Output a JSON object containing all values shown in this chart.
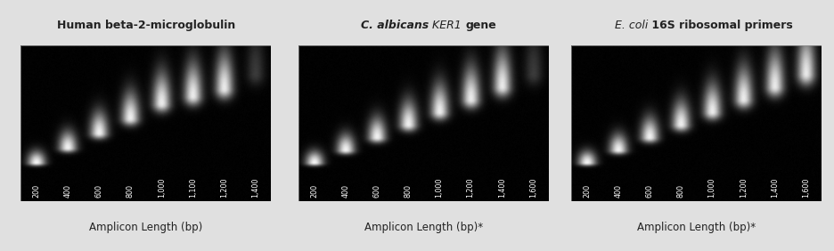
{
  "background_color": "#e0e0e0",
  "panel_bg": [
    0,
    0,
    0
  ],
  "panels": [
    {
      "title_parts": [
        {
          "text": "Human beta-2-microglobulin",
          "bold": true,
          "italic": false
        }
      ],
      "xlabel": "Amplicon Length (bp)",
      "bands": [
        200,
        400,
        600,
        800,
        1000,
        1100,
        1200,
        1400
      ],
      "last_band_faint": true
    },
    {
      "title_parts": [
        {
          "text": "C. albicans",
          "bold": true,
          "italic": true
        },
        {
          "text": " KER1 ",
          "bold": false,
          "italic": true
        },
        {
          "text": "gene",
          "bold": true,
          "italic": false
        }
      ],
      "xlabel": "Amplicon Length (bp)*",
      "bands": [
        200,
        400,
        600,
        800,
        1000,
        1200,
        1400,
        1600
      ],
      "last_band_faint": true
    },
    {
      "title_parts": [
        {
          "text": "E. coli",
          "bold": false,
          "italic": true
        },
        {
          "text": " 16S ribosomal primers",
          "bold": true,
          "italic": false
        }
      ],
      "xlabel": "Amplicon Length (bp)*",
      "bands": [
        200,
        400,
        600,
        800,
        1000,
        1200,
        1400,
        1600
      ],
      "last_band_faint": false
    }
  ],
  "text_color": "#222222",
  "title_fontsize": 9,
  "xlabel_fontsize": 8.5,
  "band_label_fontsize": 5.8
}
